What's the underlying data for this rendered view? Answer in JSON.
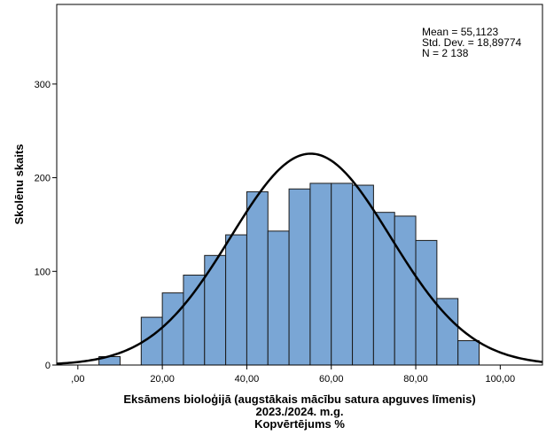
{
  "chart_data": {
    "type": "bar",
    "subtype": "histogram",
    "bin_width": 5,
    "bins": [
      {
        "start": 5,
        "end": 10,
        "count": 9
      },
      {
        "start": 10,
        "end": 15,
        "count": 0
      },
      {
        "start": 15,
        "end": 20,
        "count": 51
      },
      {
        "start": 20,
        "end": 25,
        "count": 77
      },
      {
        "start": 25,
        "end": 30,
        "count": 96
      },
      {
        "start": 30,
        "end": 35,
        "count": 117
      },
      {
        "start": 35,
        "end": 40,
        "count": 139
      },
      {
        "start": 40,
        "end": 45,
        "count": 185
      },
      {
        "start": 45,
        "end": 50,
        "count": 143
      },
      {
        "start": 50,
        "end": 55,
        "count": 188
      },
      {
        "start": 55,
        "end": 60,
        "count": 194
      },
      {
        "start": 60,
        "end": 65,
        "count": 194
      },
      {
        "start": 65,
        "end": 70,
        "count": 192
      },
      {
        "start": 70,
        "end": 75,
        "count": 163
      },
      {
        "start": 75,
        "end": 80,
        "count": 159
      },
      {
        "start": 80,
        "end": 85,
        "count": 133
      },
      {
        "start": 85,
        "end": 90,
        "count": 71
      },
      {
        "start": 90,
        "end": 95,
        "count": 26
      }
    ],
    "normal_curve": {
      "mean": 55.1123,
      "sd": 18.89774,
      "n": 2138
    },
    "xlim": [
      -5,
      110
    ],
    "ylim": [
      0,
      385
    ],
    "x_ticks": [
      0,
      20,
      40,
      60,
      80,
      100
    ],
    "x_tick_labels": [
      ",00",
      "20,00",
      "40,00",
      "60,00",
      "80,00",
      "100,00"
    ],
    "y_ticks": [
      0,
      100,
      200,
      300
    ],
    "y_tick_labels": [
      "0",
      "100",
      "200",
      "300"
    ],
    "xlabel_lines": [
      "Eksāmens bioloģijā  (augstākais mācību satura apguves līmenis)",
      "2023./2024. m.g.",
      "Kopvērtējums %"
    ],
    "ylabel": "Skolēnu skaits",
    "stats": [
      "Mean = 55,1123",
      "Std. Dev. = 18,89774",
      "N = 2 138"
    ],
    "bar_color": "#7AA6D5",
    "bar_edge_color": "#1A1A1A",
    "curve_color": "#000000"
  }
}
